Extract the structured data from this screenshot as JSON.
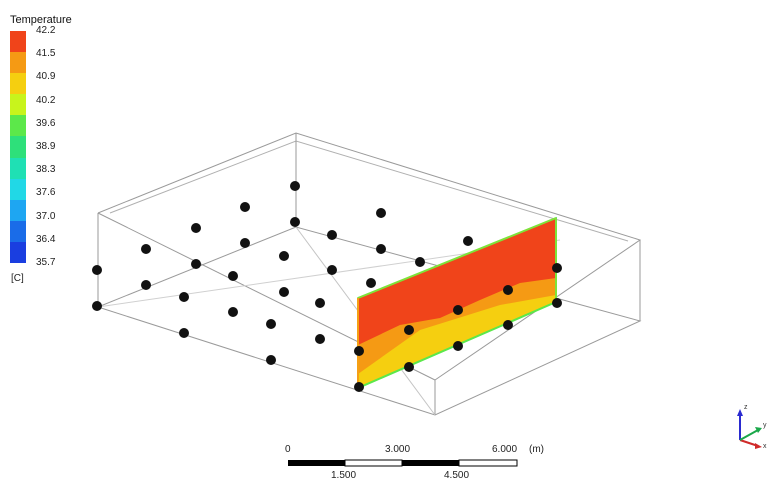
{
  "legend": {
    "title": "Temperature",
    "unit": "[C]",
    "labels": [
      "42.2",
      "41.5",
      "40.9",
      "40.2",
      "39.6",
      "38.9",
      "38.3",
      "37.6",
      "37.0",
      "36.4",
      "35.7"
    ],
    "colors": [
      "#f0441a",
      "#f59a14",
      "#f5cf10",
      "#c8f41c",
      "#5ce84a",
      "#2ee07a",
      "#1fe0b4",
      "#21d8e6",
      "#1ea6f2",
      "#1a6ce8",
      "#1a3ee0"
    ]
  },
  "scale_bar": {
    "top_labels": [
      "0",
      "3.000",
      "6.000"
    ],
    "unit": "(m)",
    "bottom_labels": [
      "1.500",
      "4.500"
    ]
  },
  "triad": {
    "axes": [
      "x",
      "y",
      "z"
    ]
  }
}
